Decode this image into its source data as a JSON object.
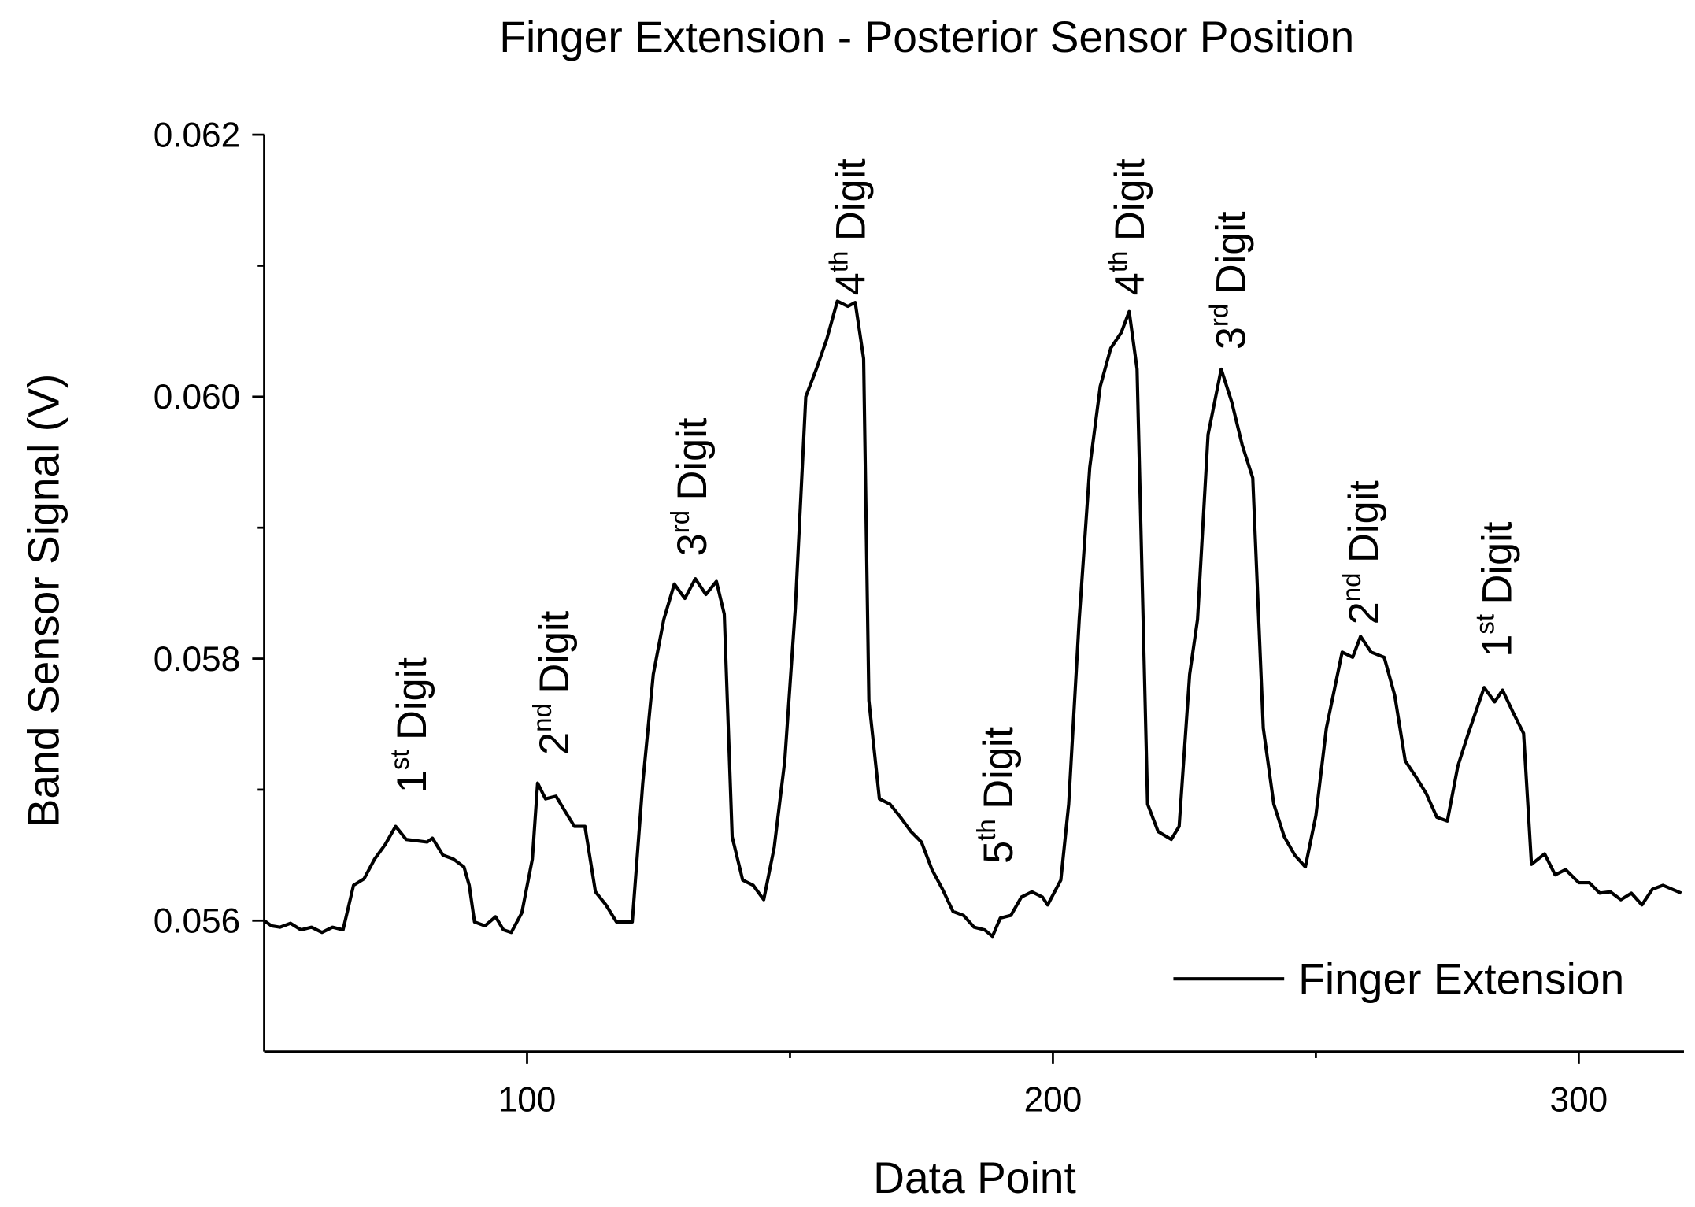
{
  "chart_data": {
    "type": "line",
    "title": "Finger Extension - Posterior Sensor Position",
    "x_label": "Data Point",
    "y_label": "Band Sensor Signal (V)",
    "xlim": [
      50,
      320
    ],
    "ylim": [
      0.055,
      0.062
    ],
    "xticks": [
      100,
      200,
      300
    ],
    "xminorticks": [
      150,
      250
    ],
    "yticks": [
      0.056,
      0.058,
      0.06,
      0.062
    ],
    "yminorticks": [
      0.057,
      0.059,
      0.061
    ],
    "legend": "lower right",
    "x": [
      50,
      51.4,
      53,
      55,
      57,
      59,
      61,
      63,
      65,
      67,
      69,
      71,
      73,
      75,
      77,
      79,
      81,
      82,
      84,
      86,
      88,
      89,
      90,
      92,
      94,
      95.5,
      97,
      99,
      101,
      102,
      103.5,
      105.5,
      107,
      109,
      111,
      113,
      115,
      117,
      120,
      122,
      124,
      126,
      128,
      130,
      132,
      134,
      136,
      137.5,
      139,
      141,
      143,
      145,
      147,
      149,
      151,
      153,
      155,
      157,
      159,
      161,
      162.4,
      164,
      165,
      167,
      169,
      171,
      173,
      175,
      177,
      179,
      181,
      183,
      185,
      187,
      188.5,
      190,
      192,
      194,
      196,
      198,
      199,
      201.5,
      203,
      205,
      207,
      209,
      211,
      213,
      214.5,
      216,
      218,
      220,
      222.5,
      224,
      226,
      227.5,
      229.5,
      232,
      234,
      236,
      238,
      240,
      242,
      244,
      246,
      248,
      250,
      252,
      255,
      257,
      258.5,
      260.5,
      263,
      265,
      267,
      269,
      271,
      273,
      275,
      277,
      279,
      282,
      284,
      285.5,
      287.5,
      289.5,
      291,
      293.5,
      295.5,
      297.5,
      300,
      302,
      304,
      306,
      308,
      310,
      312,
      314,
      316,
      319.5
    ],
    "series": [
      {
        "name": "Finger Extension",
        "color": "#000000",
        "values": [
          0.056,
          0.05596,
          0.05595,
          0.05598,
          0.05593,
          0.05595,
          0.05591,
          0.05595,
          0.05593,
          0.05627,
          0.05632,
          0.05647,
          0.05658,
          0.05672,
          0.05662,
          0.05661,
          0.0566,
          0.05663,
          0.0565,
          0.05647,
          0.05641,
          0.05627,
          0.05599,
          0.05596,
          0.05603,
          0.05593,
          0.05591,
          0.05606,
          0.05647,
          0.05705,
          0.05693,
          0.05695,
          0.05685,
          0.05672,
          0.05672,
          0.05622,
          0.05612,
          0.05599,
          0.05599,
          0.05705,
          0.05788,
          0.0583,
          0.05857,
          0.05846,
          0.05861,
          0.05849,
          0.05859,
          0.05834,
          0.05664,
          0.05631,
          0.05627,
          0.05616,
          0.05656,
          0.05722,
          0.05838,
          0.06,
          0.06021,
          0.06044,
          0.06073,
          0.06069,
          0.06072,
          0.06029,
          0.05768,
          0.05693,
          0.05689,
          0.05679,
          0.05668,
          0.0566,
          0.05639,
          0.05624,
          0.05607,
          0.05604,
          0.05595,
          0.05593,
          0.05588,
          0.05602,
          0.05604,
          0.05618,
          0.05622,
          0.05618,
          0.05612,
          0.05631,
          0.05689,
          0.0583,
          0.05946,
          0.06008,
          0.06037,
          0.06049,
          0.06065,
          0.06021,
          0.05689,
          0.05668,
          0.05662,
          0.05672,
          0.05788,
          0.0583,
          0.05971,
          0.06021,
          0.05996,
          0.05963,
          0.05938,
          0.05747,
          0.05689,
          0.05664,
          0.0565,
          0.05641,
          0.0568,
          0.05747,
          0.05805,
          0.05801,
          0.05817,
          0.05805,
          0.05801,
          0.05772,
          0.05722,
          0.0571,
          0.05697,
          0.05679,
          0.05676,
          0.05718,
          0.05743,
          0.05778,
          0.05767,
          0.05776,
          0.05759,
          0.05743,
          0.05643,
          0.05651,
          0.05635,
          0.05639,
          0.05629,
          0.05629,
          0.05621,
          0.05622,
          0.05616,
          0.05621,
          0.05612,
          0.05624,
          0.05627,
          0.05621
        ]
      }
    ],
    "annotations": [
      {
        "number": "1",
        "sup": "st",
        "text": "Digit"
      },
      {
        "number": "2",
        "sup": "nd",
        "text": "Digit"
      },
      {
        "number": "3",
        "sup": "rd",
        "text": "Digit"
      },
      {
        "number": "4",
        "sup": "th",
        "text": "Digit"
      },
      {
        "number": "5",
        "sup": "th",
        "text": "Digit"
      },
      {
        "number": "4",
        "sup": "th",
        "text": "Digit"
      },
      {
        "number": "3",
        "sup": "rd",
        "text": "Digit"
      },
      {
        "number": "2",
        "sup": "nd",
        "text": "Digit"
      },
      {
        "number": "1",
        "sup": "st",
        "text": "Digit"
      }
    ]
  }
}
